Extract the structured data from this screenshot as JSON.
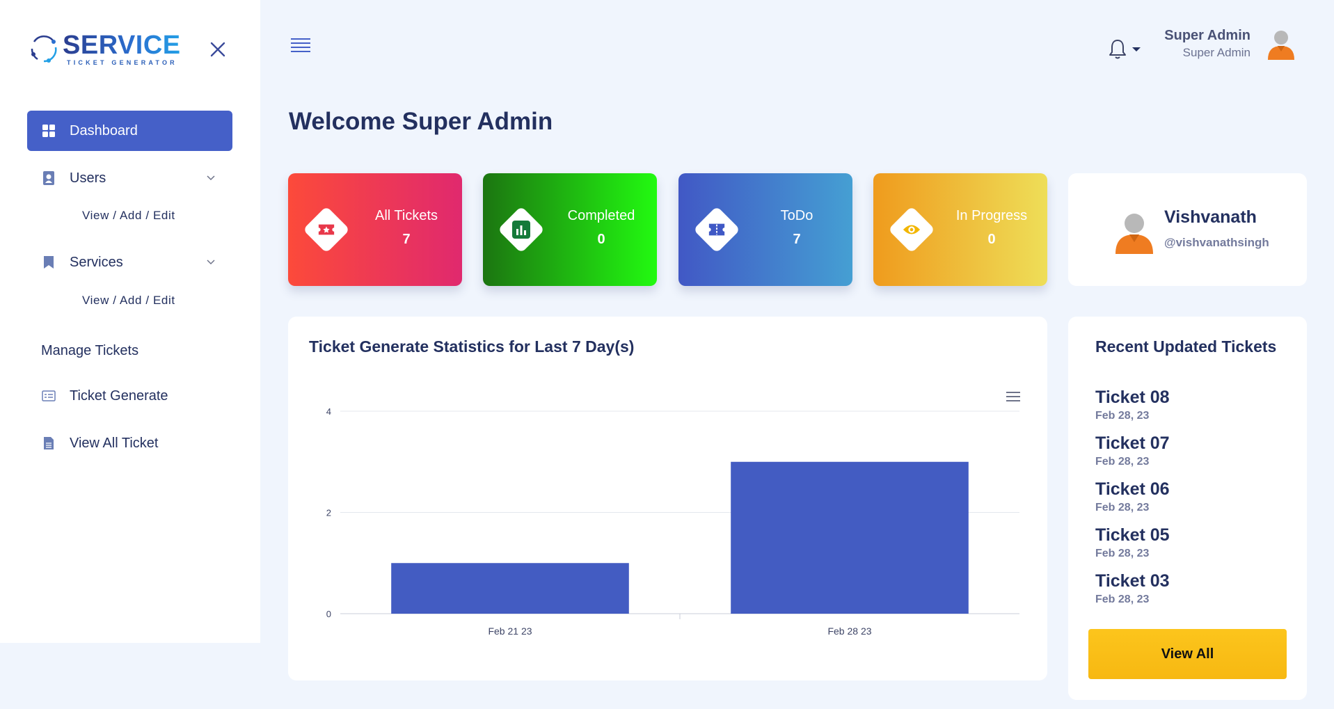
{
  "brand": {
    "name": "SERVICE",
    "tagline": "TICKET GENERATOR"
  },
  "sidebar": {
    "items": [
      {
        "label": "Dashboard",
        "icon": "dashboard-grid-icon",
        "active": true
      },
      {
        "label": "Users",
        "icon": "user-badge-icon",
        "sub": "View / Add / Edit"
      },
      {
        "label": "Services",
        "icon": "bookmark-icon",
        "sub": "View / Add / Edit"
      }
    ],
    "section_label": "Manage Tickets",
    "tickets": [
      {
        "label": "Ticket Generate",
        "icon": "ticket-form-icon"
      },
      {
        "label": "View All Ticket",
        "icon": "document-list-icon"
      }
    ]
  },
  "header": {
    "user_name": "Super Admin",
    "user_role": "Super Admin"
  },
  "welcome": "Welcome Super Admin",
  "stats": [
    {
      "label": "All Tickets",
      "value": "7",
      "icon": "ticket-icon",
      "color": "#fc4a3a"
    },
    {
      "label": "Completed",
      "value": "0",
      "icon": "chart-bars-icon",
      "color": "#22c511"
    },
    {
      "label": "ToDo",
      "value": "7",
      "icon": "todo-ticket-icon",
      "color": "#4158c5"
    },
    {
      "label": "In Progress",
      "value": "0",
      "icon": "eye-icon",
      "color": "#ef9b1d"
    }
  ],
  "profile": {
    "name": "Vishvanath",
    "handle": "@vishvanathsingh"
  },
  "chart_title": "Ticket Generate Statistics for Last 7 Day(s)",
  "chart_data": {
    "type": "bar",
    "title": "Ticket Generate Statistics for Last 7 Day(s)",
    "categories": [
      "Feb 21 23",
      "Feb 28 23"
    ],
    "values": [
      1,
      3
    ],
    "ylim": [
      0,
      4
    ],
    "yticks": [
      0,
      2,
      4
    ],
    "grid": true,
    "bar_color": "#435cc2"
  },
  "recent": {
    "title": "Recent Updated Tickets",
    "items": [
      {
        "name": "Ticket 08",
        "date": "Feb 28, 23"
      },
      {
        "name": "Ticket 07",
        "date": "Feb 28, 23"
      },
      {
        "name": "Ticket 06",
        "date": "Feb 28, 23"
      },
      {
        "name": "Ticket 05",
        "date": "Feb 28, 23"
      },
      {
        "name": "Ticket 03",
        "date": "Feb 28, 23"
      }
    ],
    "button": "View All"
  }
}
